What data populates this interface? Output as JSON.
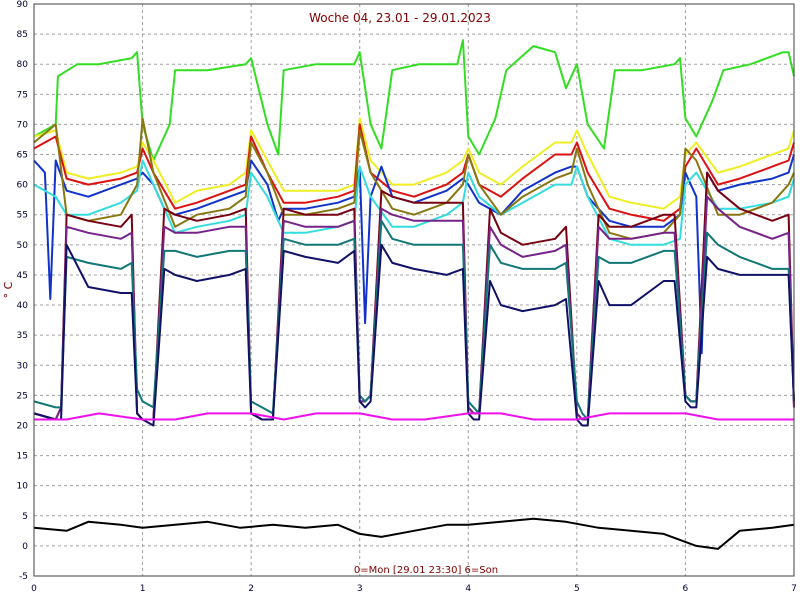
{
  "chart_data": {
    "type": "line",
    "title": "Woche 04, 23.01 - 29.01.2023",
    "xlabel": "0=Mon [29.01 23:30] 6=Son",
    "ylabel": "° C",
    "xlim": [
      0,
      7
    ],
    "ylim": [
      -5,
      90
    ],
    "x_ticks": [
      "0",
      "1",
      "2",
      "3",
      "4",
      "5",
      "6",
      "7"
    ],
    "y_ticks": [
      "-5",
      "0",
      "5",
      "10",
      "15",
      "20",
      "25",
      "30",
      "35",
      "40",
      "45",
      "50",
      "55",
      "60",
      "65",
      "70",
      "75",
      "80",
      "85",
      "90"
    ],
    "grid": true,
    "background": "#ffffff",
    "grid_color": "#a0a0a0",
    "series": [
      {
        "color": "#33dd22",
        "x": [
          0,
          0.2,
          0.22,
          0.4,
          0.6,
          0.9,
          0.95,
          1.0,
          1.1,
          1.25,
          1.3,
          1.6,
          1.95,
          2.0,
          2.15,
          2.25,
          2.3,
          2.6,
          2.95,
          3.0,
          3.1,
          3.2,
          3.3,
          3.55,
          3.9,
          3.95,
          4.0,
          4.1,
          4.25,
          4.35,
          4.6,
          4.8,
          4.9,
          5.0,
          5.1,
          5.25,
          5.35,
          5.6,
          5.9,
          5.95,
          6.0,
          6.1,
          6.25,
          6.35,
          6.6,
          6.9,
          6.95,
          7.0
        ],
        "y": [
          68,
          70,
          78,
          80,
          80,
          81,
          82,
          70,
          64,
          70,
          79,
          79,
          80,
          81,
          70,
          65,
          79,
          80,
          80,
          82,
          70,
          66,
          79,
          80,
          80,
          84,
          68,
          65,
          71,
          79,
          83,
          82,
          76,
          80,
          70,
          66,
          79,
          79,
          80,
          81,
          71,
          68,
          74,
          79,
          80,
          82,
          82,
          78
        ]
      },
      {
        "color": "#eeee22",
        "x": [
          0,
          0.2,
          0.3,
          0.5,
          0.8,
          0.95,
          1.0,
          1.1,
          1.3,
          1.5,
          1.8,
          1.95,
          2.0,
          2.15,
          2.3,
          2.5,
          2.8,
          2.95,
          3.0,
          3.1,
          3.3,
          3.5,
          3.8,
          3.95,
          4.0,
          4.1,
          4.3,
          4.5,
          4.8,
          4.95,
          5.0,
          5.1,
          5.3,
          5.5,
          5.8,
          5.95,
          6.0,
          6.1,
          6.3,
          6.5,
          6.8,
          6.95,
          7.0
        ],
        "y": [
          68,
          69,
          62,
          61,
          62,
          63,
          67,
          64,
          57,
          59,
          60,
          62,
          69,
          64,
          59,
          59,
          59,
          60,
          71,
          64,
          60,
          60,
          62,
          64,
          66,
          62,
          60,
          63,
          67,
          67,
          69,
          65,
          58,
          57,
          56,
          58,
          65,
          67,
          62,
          63,
          65,
          66,
          69
        ]
      },
      {
        "color": "#dd1111",
        "x": [
          0,
          0.2,
          0.3,
          0.5,
          0.8,
          0.95,
          1.0,
          1.1,
          1.3,
          1.5,
          1.8,
          1.95,
          2.0,
          2.15,
          2.3,
          2.5,
          2.8,
          2.95,
          3.0,
          3.1,
          3.3,
          3.5,
          3.8,
          3.95,
          4.0,
          4.1,
          4.3,
          4.5,
          4.8,
          4.95,
          5.0,
          5.1,
          5.3,
          5.5,
          5.8,
          5.95,
          6.0,
          6.1,
          6.3,
          6.5,
          6.8,
          6.95,
          7.0
        ],
        "y": [
          66,
          68,
          61,
          60,
          61,
          62,
          66,
          62,
          56,
          57,
          59,
          60,
          68,
          62,
          57,
          57,
          58,
          59,
          70,
          62,
          59,
          58,
          60,
          62,
          65,
          60,
          58,
          61,
          65,
          65,
          67,
          62,
          56,
          55,
          54,
          56,
          63,
          66,
          60,
          61,
          63,
          64,
          67
        ]
      },
      {
        "color": "#1133cc",
        "x": [
          0,
          0.1,
          0.15,
          0.2,
          0.3,
          0.5,
          0.8,
          0.95,
          1.0,
          1.1,
          1.2,
          1.3,
          1.5,
          1.8,
          1.95,
          2.0,
          2.15,
          2.25,
          2.3,
          2.5,
          2.8,
          2.95,
          3.0,
          3.05,
          3.1,
          3.2,
          3.3,
          3.5,
          3.8,
          3.95,
          4.0,
          4.1,
          4.3,
          4.5,
          4.8,
          4.95,
          5.0,
          5.1,
          5.3,
          5.5,
          5.8,
          5.95,
          6.0,
          6.1,
          6.15,
          6.2,
          6.3,
          6.5,
          6.8,
          6.95,
          7.0
        ],
        "y": [
          64,
          62,
          41,
          64,
          59,
          58,
          60,
          61,
          62,
          60,
          56,
          55,
          56,
          58,
          59,
          64,
          60,
          54,
          56,
          56,
          57,
          58,
          63,
          37,
          58,
          63,
          58,
          57,
          59,
          61,
          60,
          57,
          55,
          59,
          62,
          63,
          63,
          58,
          54,
          53,
          53,
          55,
          62,
          58,
          32,
          62,
          59,
          60,
          61,
          62,
          65
        ]
      },
      {
        "color": "#33dddd",
        "x": [
          0,
          0.2,
          0.3,
          0.5,
          0.8,
          0.95,
          1.0,
          1.1,
          1.3,
          1.5,
          1.8,
          1.95,
          2.0,
          2.15,
          2.3,
          2.5,
          2.8,
          2.95,
          3.0,
          3.1,
          3.3,
          3.5,
          3.8,
          3.95,
          4.0,
          4.1,
          4.3,
          4.5,
          4.8,
          4.95,
          5.0,
          5.1,
          5.3,
          5.5,
          5.8,
          5.95,
          6.0,
          6.1,
          6.3,
          6.5,
          6.8,
          6.95,
          7.0
        ],
        "y": [
          60,
          58,
          55,
          55,
          57,
          59,
          64,
          60,
          52,
          53,
          54,
          55,
          62,
          58,
          52,
          52,
          53,
          54,
          63,
          58,
          53,
          53,
          55,
          57,
          62,
          58,
          55,
          57,
          60,
          60,
          63,
          58,
          51,
          50,
          50,
          51,
          60,
          62,
          56,
          56,
          57,
          58,
          61
        ]
      },
      {
        "color": "#887711",
        "x": [
          0,
          0.2,
          0.3,
          0.5,
          0.8,
          0.95,
          1.0,
          1.1,
          1.3,
          1.5,
          1.8,
          1.95,
          2.0,
          2.15,
          2.3,
          2.5,
          2.8,
          2.95,
          3.0,
          3.1,
          3.3,
          3.5,
          3.8,
          3.95,
          4.0,
          4.1,
          4.3,
          4.5,
          4.8,
          4.95,
          5.0,
          5.1,
          5.3,
          5.5,
          5.8,
          5.95,
          6.0,
          6.1,
          6.3,
          6.5,
          6.8,
          6.95,
          7.0
        ],
        "y": [
          67,
          70,
          55,
          54,
          55,
          60,
          71,
          62,
          53,
          55,
          56,
          58,
          67,
          62,
          55,
          55,
          56,
          57,
          69,
          62,
          56,
          55,
          57,
          60,
          65,
          60,
          55,
          58,
          61,
          62,
          66,
          60,
          52,
          51,
          52,
          55,
          66,
          64,
          55,
          55,
          57,
          60,
          62
        ]
      },
      {
        "color": "#770011",
        "x": [
          0,
          0.2,
          0.25,
          0.3,
          0.5,
          0.8,
          0.9,
          0.95,
          1.0,
          1.1,
          1.2,
          1.3,
          1.5,
          1.8,
          1.95,
          2.0,
          2.1,
          2.2,
          2.3,
          2.5,
          2.8,
          2.95,
          3.0,
          3.05,
          3.1,
          3.2,
          3.3,
          3.5,
          3.8,
          3.95,
          4.0,
          4.05,
          4.1,
          4.2,
          4.3,
          4.5,
          4.8,
          4.9,
          5.0,
          5.05,
          5.1,
          5.2,
          5.3,
          5.5,
          5.8,
          5.9,
          6.0,
          6.05,
          6.1,
          6.2,
          6.3,
          6.5,
          6.8,
          6.95,
          7.0
        ],
        "y": [
          22,
          21,
          23,
          55,
          54,
          53,
          55,
          22,
          21,
          21,
          56,
          55,
          54,
          55,
          56,
          22,
          21,
          21,
          56,
          55,
          55,
          56,
          24,
          24,
          25,
          59,
          58,
          57,
          57,
          57,
          23,
          22,
          22,
          56,
          52,
          50,
          51,
          53,
          22,
          21,
          21,
          55,
          53,
          53,
          55,
          55,
          25,
          24,
          24,
          62,
          59,
          56,
          54,
          55,
          23
        ]
      },
      {
        "color": "#772288",
        "x": [
          0,
          0.2,
          0.25,
          0.3,
          0.5,
          0.8,
          0.9,
          0.95,
          1.0,
          1.1,
          1.2,
          1.3,
          1.5,
          1.8,
          1.95,
          2.0,
          2.1,
          2.2,
          2.3,
          2.5,
          2.8,
          2.95,
          3.0,
          3.05,
          3.1,
          3.2,
          3.3,
          3.5,
          3.8,
          3.95,
          4.0,
          4.05,
          4.1,
          4.2,
          4.3,
          4.5,
          4.8,
          4.9,
          5.0,
          5.05,
          5.1,
          5.2,
          5.3,
          5.5,
          5.8,
          5.9,
          6.0,
          6.05,
          6.1,
          6.2,
          6.3,
          6.5,
          6.8,
          6.95,
          7.0
        ],
        "y": [
          22,
          21,
          23,
          53,
          52,
          51,
          52,
          22,
          21,
          21,
          53,
          52,
          52,
          53,
          53,
          22,
          21,
          21,
          54,
          53,
          53,
          54,
          24,
          24,
          25,
          56,
          55,
          54,
          54,
          54,
          23,
          22,
          22,
          53,
          50,
          48,
          49,
          50,
          22,
          21,
          21,
          53,
          51,
          51,
          52,
          52,
          25,
          24,
          24,
          58,
          56,
          53,
          51,
          52,
          23
        ]
      },
      {
        "color": "#117777",
        "x": [
          0,
          0.2,
          0.25,
          0.3,
          0.5,
          0.8,
          0.9,
          0.95,
          1.0,
          1.1,
          1.2,
          1.3,
          1.5,
          1.8,
          1.95,
          2.0,
          2.1,
          2.2,
          2.3,
          2.5,
          2.8,
          2.95,
          3.0,
          3.05,
          3.1,
          3.2,
          3.3,
          3.5,
          3.8,
          3.95,
          4.0,
          4.05,
          4.1,
          4.2,
          4.3,
          4.5,
          4.8,
          4.9,
          5.0,
          5.05,
          5.1,
          5.2,
          5.3,
          5.5,
          5.8,
          5.9,
          6.0,
          6.05,
          6.1,
          6.2,
          6.3,
          6.5,
          6.8,
          6.95,
          7.0
        ],
        "y": [
          24,
          23,
          23,
          48,
          47,
          46,
          47,
          26,
          24,
          23,
          49,
          49,
          48,
          49,
          49,
          24,
          23,
          22,
          51,
          50,
          50,
          51,
          25,
          24,
          25,
          54,
          51,
          50,
          50,
          50,
          24,
          23,
          22,
          50,
          47,
          46,
          46,
          47,
          24,
          22,
          21,
          48,
          47,
          47,
          49,
          49,
          25,
          24,
          24,
          52,
          50,
          48,
          46,
          46,
          24
        ]
      },
      {
        "color": "#111166",
        "x": [
          0,
          0.2,
          0.25,
          0.3,
          0.5,
          0.8,
          0.9,
          0.95,
          1.0,
          1.1,
          1.2,
          1.3,
          1.5,
          1.8,
          1.95,
          2.0,
          2.1,
          2.2,
          2.3,
          2.5,
          2.8,
          2.95,
          3.0,
          3.05,
          3.1,
          3.2,
          3.3,
          3.5,
          3.8,
          3.95,
          4.0,
          4.05,
          4.1,
          4.2,
          4.3,
          4.5,
          4.8,
          4.9,
          5.0,
          5.05,
          5.1,
          5.2,
          5.3,
          5.5,
          5.8,
          5.9,
          6.0,
          6.05,
          6.1,
          6.2,
          6.3,
          6.5,
          6.8,
          6.95,
          7.0
        ],
        "y": [
          22,
          21,
          21,
          50,
          43,
          42,
          42,
          22,
          21,
          20,
          46,
          45,
          44,
          45,
          46,
          22,
          21,
          21,
          49,
          48,
          47,
          49,
          24,
          23,
          24,
          50,
          47,
          46,
          45,
          46,
          22,
          21,
          21,
          44,
          40,
          39,
          40,
          41,
          21,
          20,
          20,
          44,
          40,
          40,
          44,
          44,
          24,
          23,
          23,
          48,
          46,
          45,
          45,
          45,
          24
        ]
      },
      {
        "color": "#ee11ee",
        "x": [
          0,
          0.3,
          0.6,
          1.0,
          1.3,
          1.6,
          2.0,
          2.3,
          2.6,
          3.0,
          3.3,
          3.6,
          4.0,
          4.3,
          4.6,
          5.0,
          5.3,
          5.6,
          6.0,
          6.3,
          6.6,
          7.0
        ],
        "y": [
          21,
          21,
          22,
          21,
          21,
          22,
          22,
          21,
          22,
          22,
          21,
          21,
          22,
          22,
          21,
          21,
          22,
          22,
          22,
          21,
          21,
          21
        ]
      },
      {
        "color": "#000000",
        "x": [
          0,
          0.3,
          0.5,
          0.8,
          1.0,
          1.3,
          1.6,
          1.9,
          2.2,
          2.5,
          2.8,
          3.0,
          3.2,
          3.5,
          3.8,
          4.0,
          4.3,
          4.6,
          4.9,
          5.2,
          5.5,
          5.8,
          6.1,
          6.3,
          6.5,
          6.8,
          7.0
        ],
        "y": [
          3,
          2.5,
          4,
          3.5,
          3,
          3.5,
          4,
          3,
          3.5,
          3,
          3.5,
          2,
          1.5,
          2.5,
          3.5,
          3.5,
          4,
          4.5,
          4,
          3,
          2.5,
          2,
          0,
          -0.5,
          2.5,
          3,
          3.5
        ]
      }
    ]
  }
}
